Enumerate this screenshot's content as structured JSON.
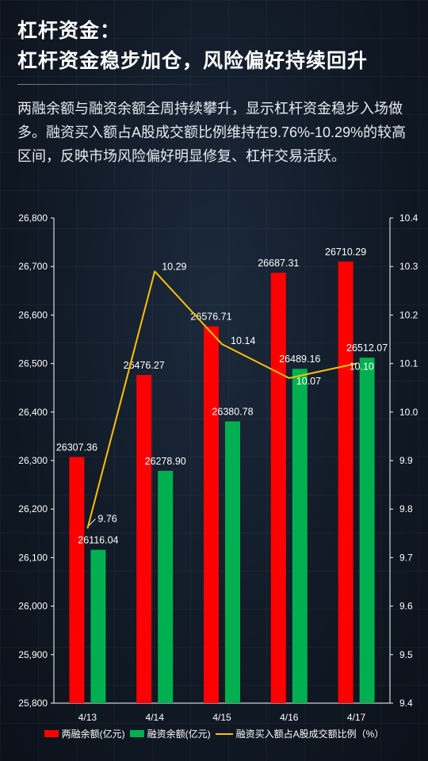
{
  "header": {
    "title_line1": "杠杆资金：",
    "title_line2": "杠杆资金稳步加仓，风险偏好持续回升",
    "description": "两融余额与融资余额全周持续攀升，显示杠杆资金稳步入场做多。融资买入额占A股成交额比例维持在9.76%-10.29%的较高区间，反映市场风险偏好明显修复、杠杆交易活跃。"
  },
  "chart_data": {
    "type": "bar",
    "categories": [
      "4/13",
      "4/14",
      "4/15",
      "4/16",
      "4/17"
    ],
    "series": [
      {
        "name": "两融余额(亿元)",
        "type": "bar",
        "axis": "left",
        "color": "#ff0000",
        "values": [
          26307.36,
          26476.27,
          26576.71,
          26687.31,
          26710.29
        ]
      },
      {
        "name": "融资余额(亿元)",
        "type": "bar",
        "axis": "left",
        "color": "#00b050",
        "values": [
          26116.04,
          26278.9,
          26380.78,
          26489.16,
          26512.07
        ]
      },
      {
        "name": "融资买入额占A股成交额比例（%）",
        "type": "line",
        "axis": "right",
        "color": "#ffc000",
        "values": [
          9.76,
          10.29,
          10.14,
          10.07,
          10.1
        ]
      }
    ],
    "left_axis": {
      "min": 25800,
      "max": 26800,
      "step": 100,
      "tick_labels": [
        "25,800",
        "25,900",
        "26,000",
        "26,100",
        "26,200",
        "26,300",
        "26,400",
        "26,500",
        "26,600",
        "26,700",
        "26,800"
      ]
    },
    "right_axis": {
      "min": 9.4,
      "max": 10.4,
      "step": 0.1,
      "tick_labels": [
        "9.4",
        "9.5",
        "9.6",
        "9.7",
        "9.8",
        "9.9",
        "10.0",
        "10.1",
        "10.2",
        "10.3",
        "10.4"
      ]
    },
    "bar_value_labels": [
      [
        "26307.36",
        "26476.27",
        "26576.71",
        "26687.31",
        "26710.29"
      ],
      [
        "26116.04",
        "26278.90",
        "26380.78",
        "26489.16",
        "26512.07"
      ]
    ],
    "line_value_labels": [
      "9.76",
      "10.29",
      "10.14",
      "10.07",
      "10.10"
    ],
    "grid": false,
    "legend_position": "bottom"
  }
}
